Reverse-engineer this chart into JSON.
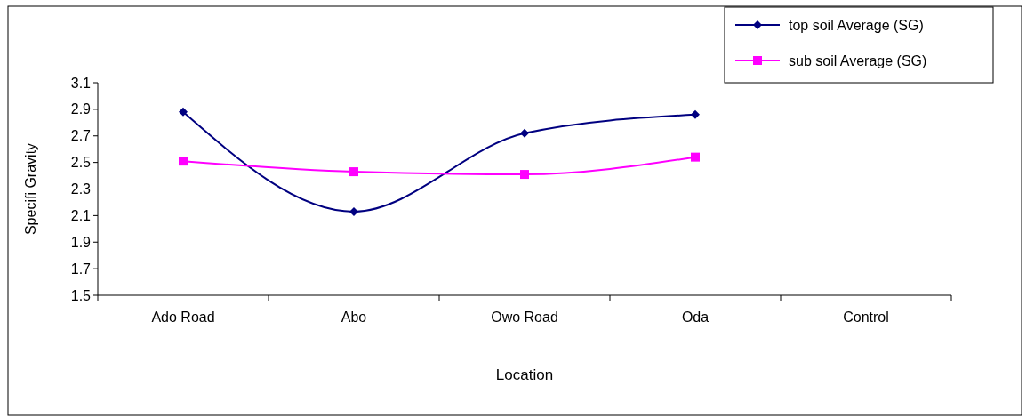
{
  "chart_data": {
    "type": "line",
    "xlabel": "Location",
    "ylabel": "Specifi Gravity",
    "categories": [
      "Ado Road",
      "Abo",
      "Owo Road",
      "Oda",
      "Control"
    ],
    "series": [
      {
        "name": "top soil Average (SG)",
        "color": "#000080",
        "marker": "diamond",
        "values": [
          2.88,
          2.13,
          2.72,
          2.86,
          null
        ]
      },
      {
        "name": "sub soil Average (SG)",
        "color": "#ff00ff",
        "marker": "square",
        "values": [
          2.51,
          2.43,
          2.41,
          2.54,
          null
        ]
      }
    ],
    "ylim": [
      1.5,
      3.1
    ],
    "yticks": [
      1.5,
      1.7,
      1.9,
      2.1,
      2.3,
      2.5,
      2.7,
      2.9,
      3.1
    ],
    "legend": "top right",
    "grid": false,
    "line_style": "solid"
  }
}
